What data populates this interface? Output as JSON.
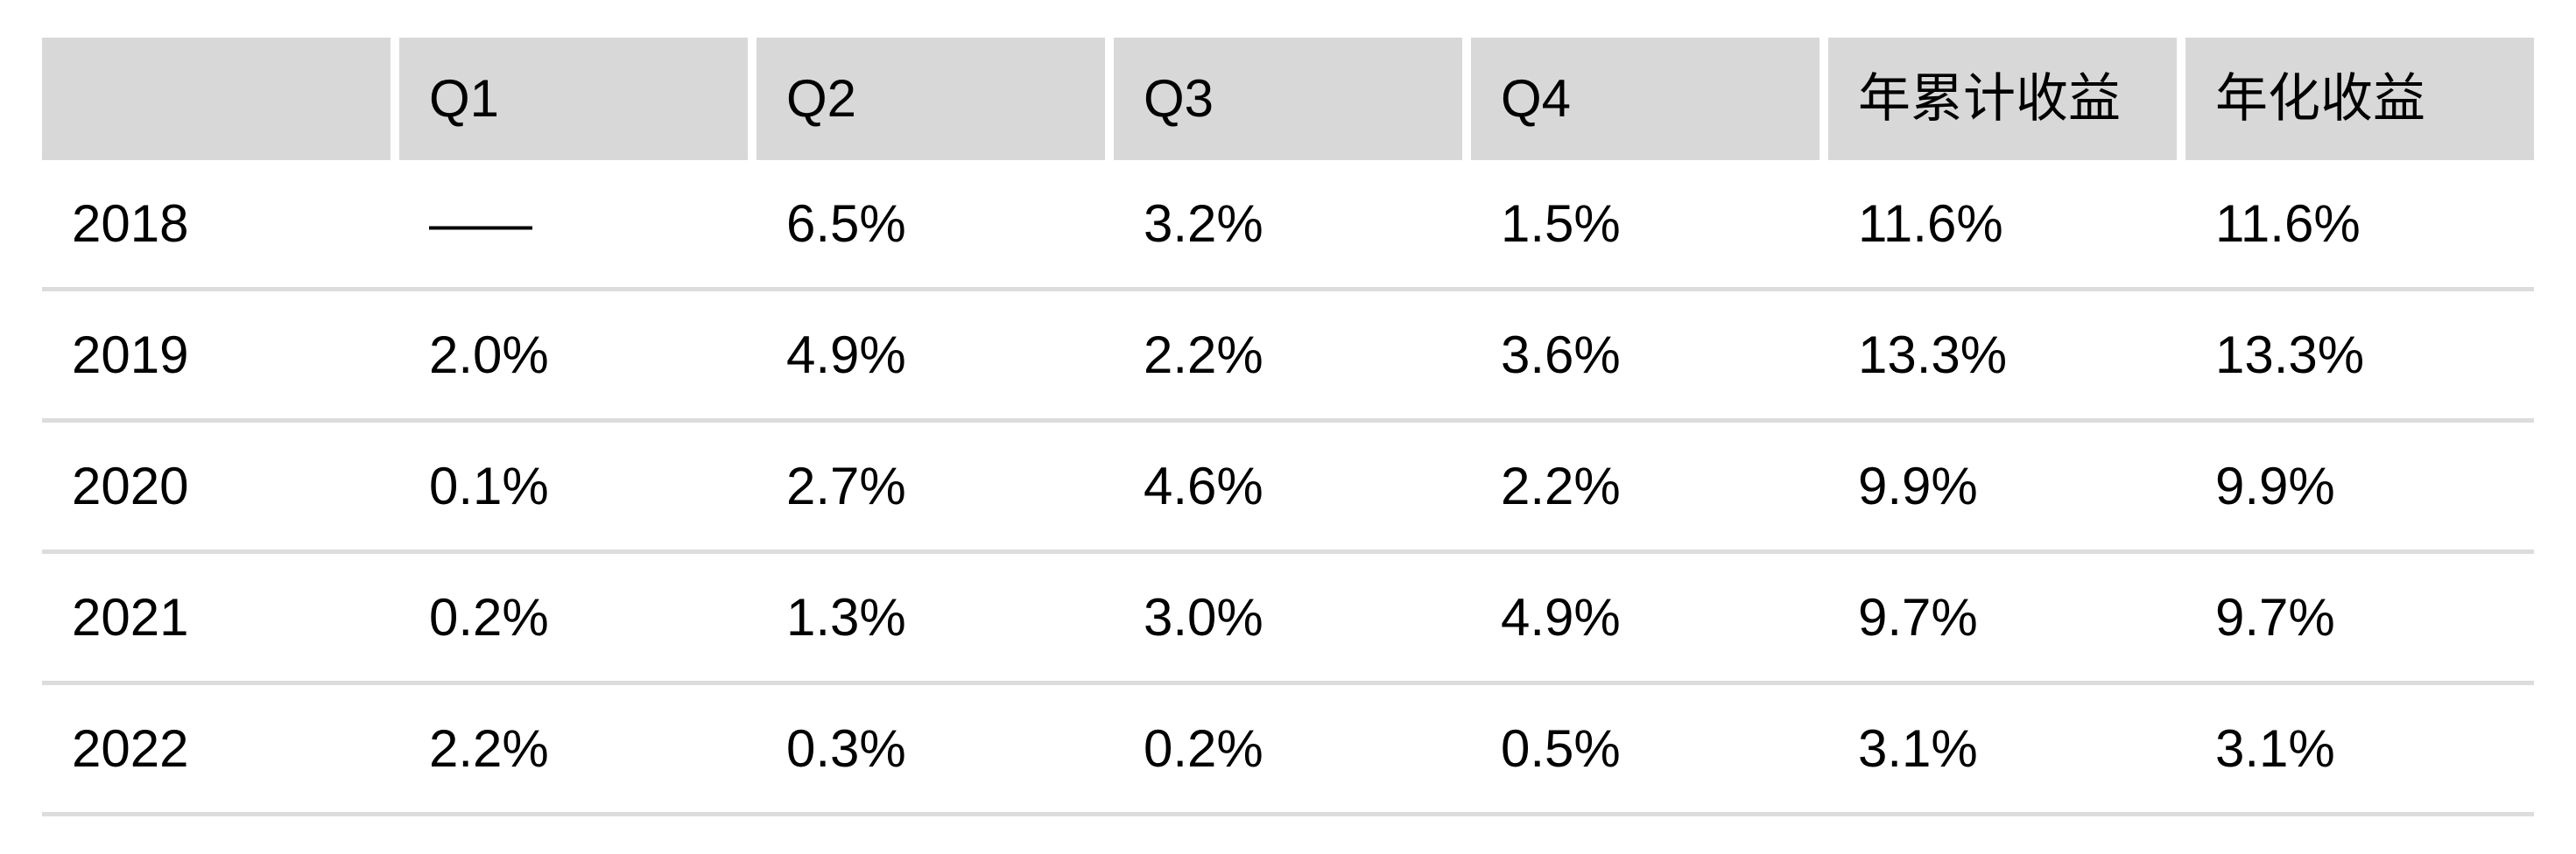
{
  "chart_data": {
    "type": "table",
    "title": "",
    "columns": [
      "",
      "Q1",
      "Q2",
      "Q3",
      "Q4",
      "年累计收益",
      "年化收益"
    ],
    "rows": [
      [
        "2018",
        "——",
        "6.5%",
        "3.2%",
        "1.5%",
        "11.6%",
        "11.6%"
      ],
      [
        "2019",
        "2.0%",
        "4.9%",
        "2.2%",
        "3.6%",
        "13.3%",
        "13.3%"
      ],
      [
        "2020",
        "0.1%",
        "2.7%",
        "4.6%",
        "2.2%",
        "9.9%",
        "9.9%"
      ],
      [
        "2021",
        "0.2%",
        "1.3%",
        "3.0%",
        "4.9%",
        "9.7%",
        "9.7%"
      ],
      [
        "2022",
        "2.2%",
        "0.3%",
        "0.2%",
        "0.5%",
        "3.1%",
        "3.1%"
      ]
    ],
    "notes": {
      "missing_value_symbol": "——",
      "missing_value_location": "2018 Q1",
      "column_meanings": {
        "年累计收益": "year cumulative return",
        "年化收益": "annualized return"
      }
    },
    "layout": {
      "header_background": "#d8d8d8",
      "row_divider_color": "#dcdcdc",
      "grid": "horizontal dividers only, white gaps between header cells"
    }
  },
  "colors": {
    "header_bg": "#d8d8d8",
    "divider": "#dcdcdc",
    "text": "#000000",
    "background": "#ffffff"
  }
}
